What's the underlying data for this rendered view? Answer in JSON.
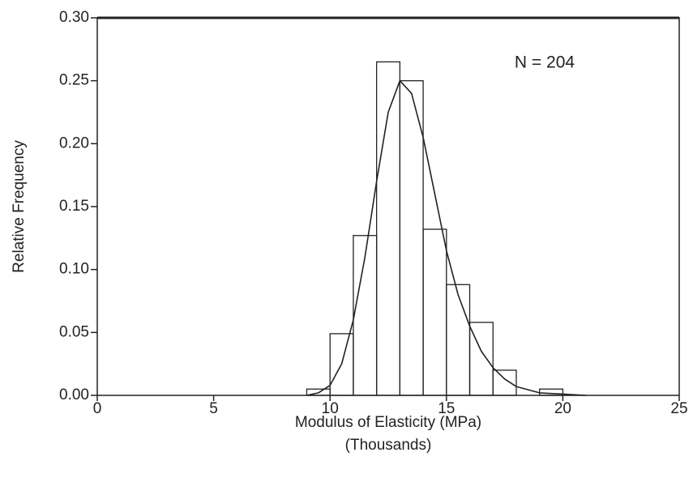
{
  "chart_data": {
    "type": "histogram",
    "xlabel": "Modulus of Elasticity (MPa)",
    "xlabel_sub": "(Thousands)",
    "ylabel": "Relative Frequency",
    "annotation": "N = 204",
    "bins": [
      9,
      10,
      11,
      12,
      13,
      14,
      15,
      16,
      17,
      18,
      19,
      20
    ],
    "values": [
      0.005,
      0.049,
      0.127,
      0.265,
      0.25,
      0.132,
      0.088,
      0.058,
      0.02,
      0,
      0.005
    ],
    "curve": {
      "x": [
        9,
        9.5,
        10,
        10.5,
        11,
        11.5,
        12,
        12.5,
        13,
        13.5,
        14,
        14.5,
        15,
        15.5,
        16,
        16.5,
        17,
        17.5,
        18,
        19,
        20,
        21
      ],
      "values": [
        0,
        0.002,
        0.008,
        0.025,
        0.06,
        0.11,
        0.17,
        0.225,
        0.25,
        0.24,
        0.205,
        0.16,
        0.115,
        0.08,
        0.055,
        0.035,
        0.022,
        0.013,
        0.007,
        0.002,
        0.001,
        0
      ]
    },
    "color": "#222222",
    "xlim": [
      0,
      25
    ],
    "xticks": [
      0,
      5,
      10,
      15,
      20,
      25
    ],
    "ylim": [
      0,
      0.3
    ],
    "yticks": [
      {
        "value": 0,
        "label": "0.00"
      },
      {
        "value": 0.05,
        "label": "0.05"
      },
      {
        "value": 0.1,
        "label": "0.10"
      },
      {
        "value": 0.15,
        "label": "0.15"
      },
      {
        "value": 0.2,
        "label": "0.20"
      },
      {
        "value": 0.25,
        "label": "0.25"
      },
      {
        "value": 0.3,
        "label": "0.30"
      }
    ]
  }
}
